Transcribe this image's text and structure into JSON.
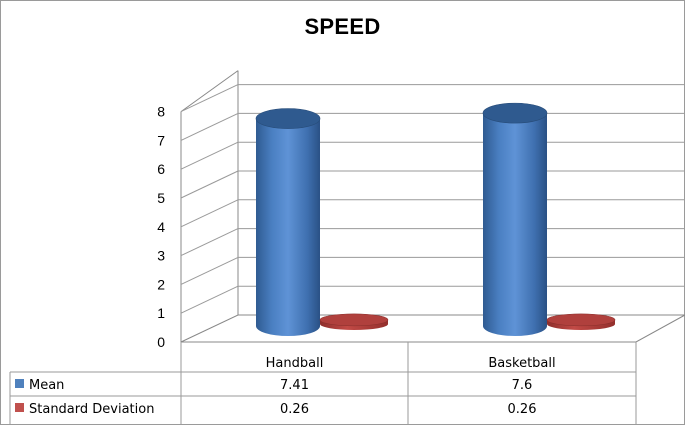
{
  "chart_data": {
    "type": "bar",
    "title": "SPEED",
    "categories": [
      "Handball",
      "Basketball"
    ],
    "series": [
      {
        "name": "Mean",
        "values": [
          7.41,
          7.6
        ],
        "labels": [
          "7.41",
          "7.6"
        ],
        "color": "#4f81bd"
      },
      {
        "name": "Standard Deviation",
        "values": [
          0.26,
          0.26
        ],
        "labels": [
          "0.26",
          "0.26"
        ],
        "color": "#c0504d"
      }
    ],
    "ylim": [
      0,
      8
    ],
    "yticks": [
      "0",
      "1",
      "2",
      "3",
      "4",
      "5",
      "6",
      "7",
      "8"
    ],
    "grid": true,
    "legend": "data-table",
    "xlabel": "",
    "ylabel": ""
  }
}
